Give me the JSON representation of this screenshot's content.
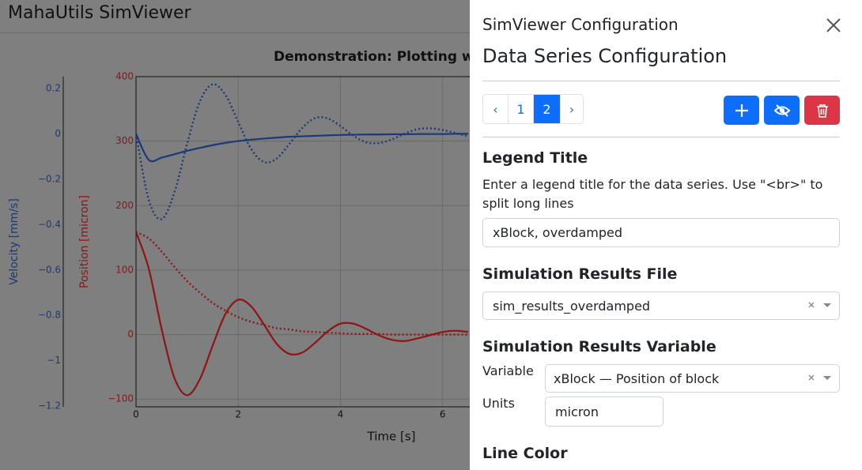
{
  "header": {
    "title": "MahaUtils SimViewer"
  },
  "chart_data": {
    "type": "line",
    "title": "Demonstration: Plotting w",
    "x_label": "Time [s]",
    "y_label": "Position [micron]",
    "y2_label": "Velocity [mm/s]",
    "x": [
      0,
      0.25,
      0.5,
      0.75,
      1,
      1.25,
      1.5,
      1.75,
      2,
      2.25,
      2.5,
      2.75,
      3,
      3.25,
      3.5,
      3.75,
      4,
      4.25,
      4.5,
      4.75,
      5,
      5.25,
      5.5,
      5.75,
      6,
      6.25,
      6.5
    ],
    "xlim": [
      0,
      8
    ],
    "xticks": [
      0,
      2,
      4,
      6
    ],
    "ylim": [
      -112,
      400
    ],
    "yticks": [
      {
        "value": -100,
        "label": "−100"
      },
      0,
      100,
      200,
      300,
      400
    ],
    "y2lim": [
      -1.203,
      0.252
    ],
    "y2ticks": [
      {
        "value": -1.2,
        "label": "−1.2"
      },
      {
        "value": -1,
        "label": "−1"
      },
      {
        "value": -0.8,
        "label": "−0.8"
      },
      {
        "value": -0.6,
        "label": "−0.6"
      },
      {
        "value": -0.4,
        "label": "−0.4"
      },
      {
        "value": -0.2,
        "label": "−0.2"
      },
      0,
      0.2
    ],
    "grid": true,
    "series": [
      {
        "color": "#8e1515",
        "line_style": "solid",
        "values": [
          159,
          102,
          9,
          -67,
          -94,
          -69,
          -17,
          32,
          54,
          44,
          16,
          -14,
          -30,
          -28,
          -13,
          5,
          17,
          17,
          9,
          -1,
          -8,
          -10,
          -6,
          -1,
          4,
          6,
          4
        ]
      },
      {
        "color": "#8e1515",
        "line_style": "dot",
        "values": [
          159,
          149,
          129,
          105,
          83,
          65,
          49,
          37,
          27,
          20,
          15,
          10,
          8,
          5,
          4,
          3,
          2,
          1,
          1,
          1,
          0,
          0,
          0,
          0,
          0,
          0,
          0
        ]
      },
      {
        "color": "#1a3a78",
        "line_style": "solid",
        "axis": "y2",
        "values": [
          0,
          -0.115,
          -0.105,
          -0.09,
          -0.075,
          -0.062,
          -0.05,
          -0.04,
          -0.032,
          -0.026,
          -0.021,
          -0.017,
          -0.013,
          -0.011,
          -0.009,
          -0.007,
          -0.005,
          -0.004,
          -0.003,
          -0.003,
          -0.002,
          -0.002,
          -0.001,
          -0.001,
          -0.001,
          0,
          0
        ]
      },
      {
        "color": "#1a3a78",
        "line_style": "dot",
        "axis": "y2",
        "values": [
          0,
          -0.292,
          -0.376,
          -0.259,
          -0.044,
          0.143,
          0.218,
          0.171,
          0.052,
          -0.066,
          -0.124,
          -0.109,
          -0.045,
          0.025,
          0.069,
          0.068,
          0.034,
          -0.008,
          -0.037,
          -0.041,
          -0.025,
          0,
          0.02,
          0.024,
          0.017,
          0.003,
          -0.011
        ]
      }
    ]
  },
  "panel": {
    "title": "SimViewer Configuration",
    "heading": "Data Series Configuration",
    "pagination": [
      "‹",
      "1",
      "2",
      "›"
    ],
    "legend_title": {
      "label": "Legend Title",
      "help": "Enter a legend title for the data series. Use \"<br>\" to split long lines",
      "value": "xBlock, overdamped"
    },
    "results_file": {
      "label": "Simulation Results File",
      "value": "sim_results_overdamped"
    },
    "results_variable": {
      "label": "Simulation Results Variable",
      "variable_label": "Variable",
      "variable_value": "xBlock — Position of block",
      "units_label": "Units",
      "units_value": "micron"
    },
    "line_color": {
      "label": "Line Color"
    }
  }
}
